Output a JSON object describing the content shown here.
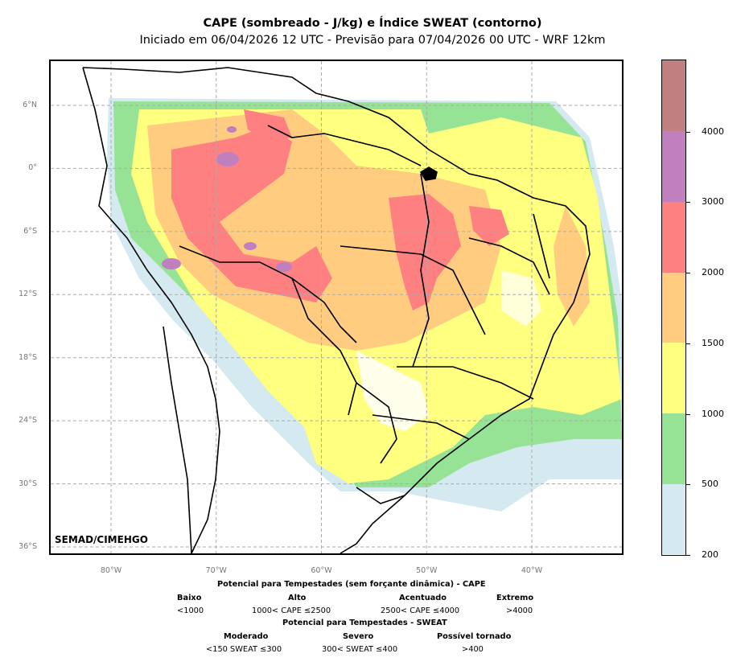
{
  "title": "CAPE (sombreado - J/kg) e Índice SWEAT (contorno)",
  "subtitle": "Iniciado em 06/04/2026 12 UTC - Previsão para 07/04/2026 00 UTC - WRF 12km",
  "credit": "SEMAD/CIMEHGO",
  "lat_labels": [
    "6°N",
    "0°",
    "6°S",
    "12°S",
    "18°S",
    "24°S",
    "30°S",
    "36°S"
  ],
  "lat_values": [
    6,
    0,
    -6,
    -12,
    -18,
    -24,
    -30,
    -36
  ],
  "lon_labels": [
    "80°W",
    "70°W",
    "60°W",
    "50°W",
    "40°W"
  ],
  "lon_values": [
    -80,
    -70,
    -60,
    -50,
    -40
  ],
  "colorbar": {
    "levels": [
      "200",
      "500",
      "1000",
      "1500",
      "2000",
      "3000",
      "4000"
    ],
    "colors": [
      "#d4eaf0",
      "#96e396",
      "#ffff80",
      "#ffcc80",
      "#ff8080",
      "#c080c0",
      "#c08080"
    ]
  },
  "legend": {
    "cape_heading": "Potencial para Tempestades (sem forçante dinâmica) - CAPE",
    "cape_categories": [
      {
        "name": "Baixo",
        "range": "<1000"
      },
      {
        "name": "Alto",
        "range": "1000< CAPE ≤2500"
      },
      {
        "name": "Acentuado",
        "range": "2500< CAPE ≤4000"
      },
      {
        "name": "Extremo",
        "range": ">4000"
      }
    ],
    "sweat_heading": "Potencial para Tempestades - SWEAT",
    "sweat_categories": [
      {
        "name": "Moderado",
        "range": "<150 SWEAT ≤300"
      },
      {
        "name": "Severo",
        "range": "300< SWEAT ≤400"
      },
      {
        "name": "Possível tornado",
        "range": ">400"
      }
    ]
  }
}
